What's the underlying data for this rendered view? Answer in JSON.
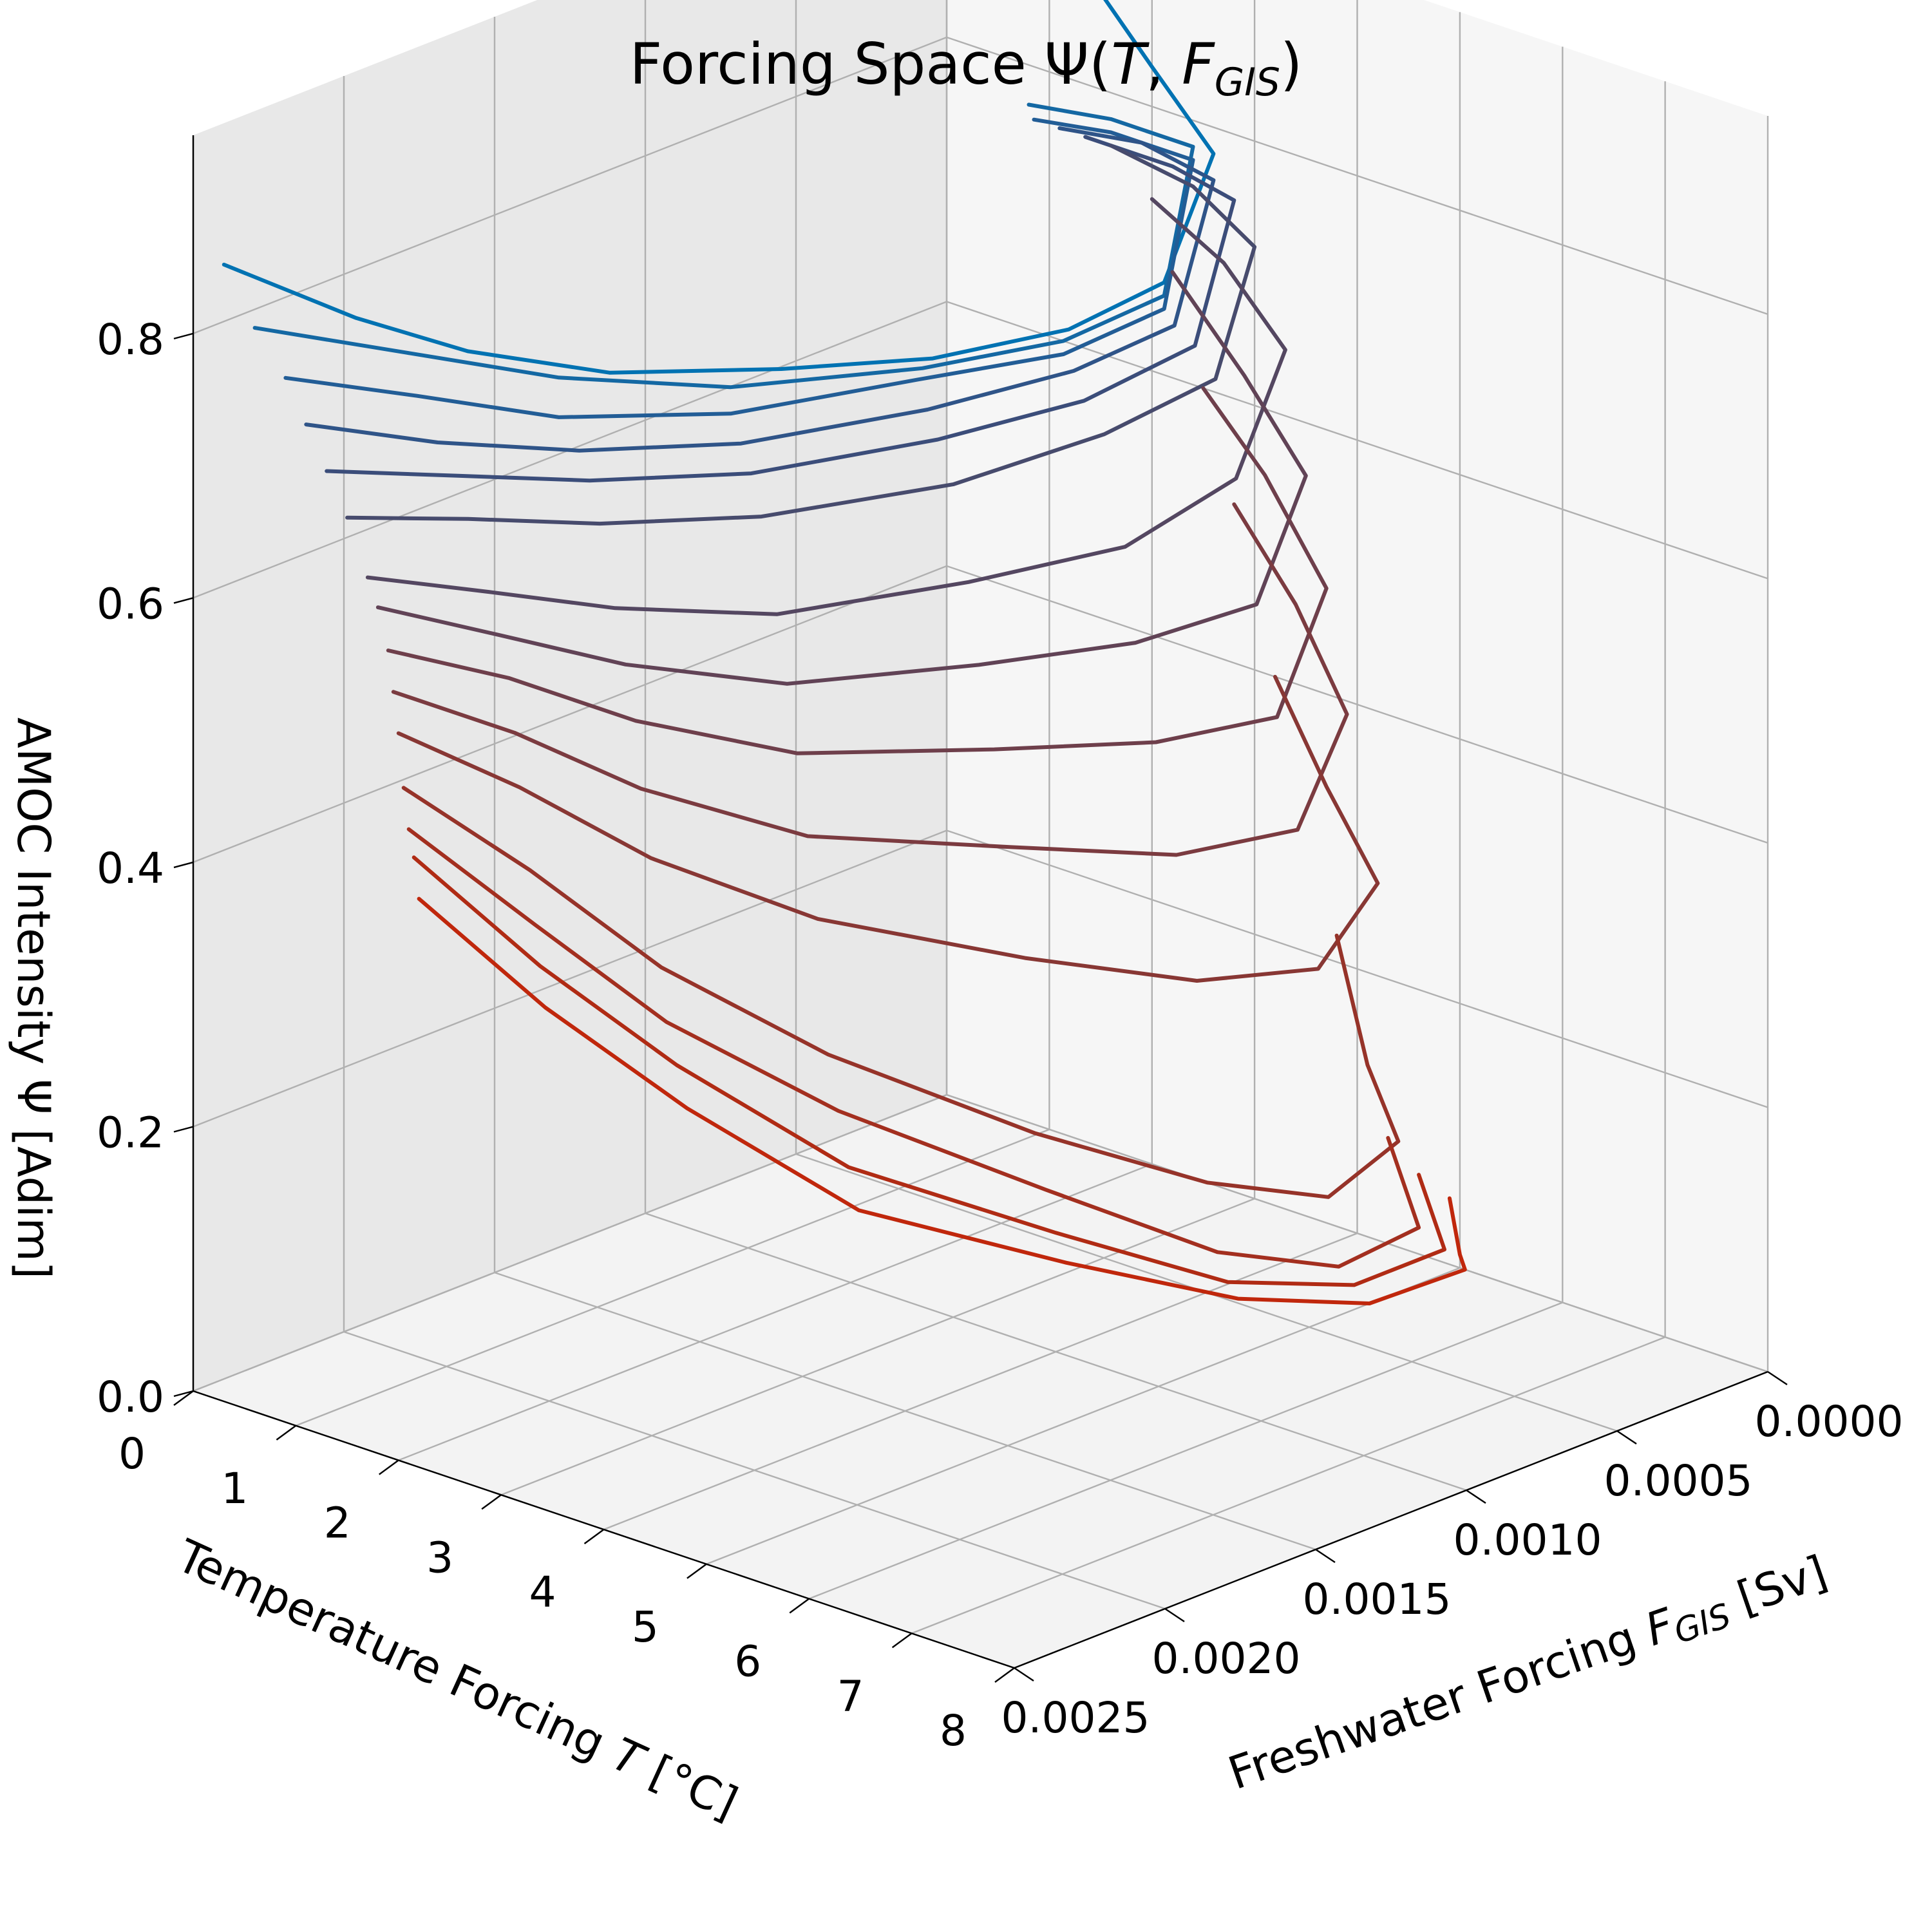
{
  "chart_data": {
    "type": "line",
    "projection": "3d",
    "title": "Forcing Space Ψ(T, F_GIS)",
    "title_parts": {
      "main": "Forcing Space Ψ(",
      "T": "T",
      "sep": ", ",
      "F": "F",
      "F_sub": "GIS",
      "close": ")"
    },
    "xlabel": "Temperature Forcing T   [°C]",
    "xlabel_parts": {
      "main": "Temperature Forcing ",
      "var": "T",
      "unit": "   [°C]"
    },
    "ylabel": "Freshwater Forcing F_GIS [Sv]",
    "ylabel_parts": {
      "main": "Freshwater Forcing ",
      "var": "F",
      "sub": "GIS",
      "unit": " [Sv]"
    },
    "zlabel": "AMOC Intensity Ψ   [Adim]",
    "xlim": [
      0,
      8
    ],
    "ylim": [
      0.0025,
      0
    ],
    "zlim": [
      0,
      0.95
    ],
    "xticks": [
      "0",
      "1",
      "2",
      "3",
      "4",
      "5",
      "6",
      "7",
      "8"
    ],
    "yticks": [
      "0.0000",
      "0.0005",
      "0.0010",
      "0.0015",
      "0.0020",
      "0.0025"
    ],
    "zticks": [
      "0.0",
      "0.2",
      "0.4",
      "0.6",
      "0.8"
    ],
    "grid": true,
    "colors": {
      "start": "#0072b2",
      "end": "#d03010",
      "pane_left": "#e8e8e8",
      "pane_right": "#f6f6f6",
      "pane_floor": "#f3f3f3"
    },
    "series": [
      {
        "F_end": 0.0025,
        "color": "#0072b2",
        "points": [
          [
            0.8,
            0,
            0.92
          ],
          [
            1.3,
            0,
            0.89
          ],
          [
            2,
            0,
            0.83
          ],
          [
            2.6,
            0,
            0.78
          ],
          [
            3,
            0.0003,
            0.72
          ],
          [
            2.95,
            0.0006,
            0.71
          ],
          [
            2.8,
            0.001,
            0.72
          ],
          [
            2.5,
            0.0014,
            0.74
          ],
          [
            2,
            0.0018,
            0.76
          ],
          [
            1.5,
            0.0021,
            0.79
          ],
          [
            1,
            0.0023,
            0.82
          ],
          [
            0.3,
            0.0025,
            0.86
          ]
        ]
      },
      {
        "F_end": 0.0025,
        "color": "#1468a3",
        "points": [
          [
            0.8,
            0,
            0.77
          ],
          [
            1.6,
            0,
            0.78
          ],
          [
            2.4,
            0,
            0.78
          ],
          [
            3,
            0.0003,
            0.71
          ],
          [
            2.9,
            0.0006,
            0.7
          ],
          [
            2.7,
            0.001,
            0.71
          ],
          [
            2.3,
            0.0015,
            0.73
          ],
          [
            1.8,
            0.0019,
            0.76
          ],
          [
            1.2,
            0.0022,
            0.79
          ],
          [
            0.6,
            0.0025,
            0.82
          ]
        ]
      },
      {
        "F_end": 0.0025,
        "color": "#225d96",
        "points": [
          [
            0.85,
            0,
            0.76
          ],
          [
            1.6,
            0,
            0.77
          ],
          [
            2.4,
            0,
            0.77
          ],
          [
            3,
            0.0003,
            0.7
          ],
          [
            2.9,
            0.0006,
            0.69
          ],
          [
            2.65,
            0.001,
            0.7
          ],
          [
            2.3,
            0.0015,
            0.71
          ],
          [
            1.8,
            0.0019,
            0.73
          ],
          [
            1.3,
            0.0022,
            0.76
          ],
          [
            0.9,
            0.0025,
            0.79
          ]
        ]
      },
      {
        "F_end": 0.0025,
        "color": "#2f5488",
        "points": [
          [
            1.1,
            0,
            0.76
          ],
          [
            1.9,
            0,
            0.77
          ],
          [
            2.6,
            0,
            0.76
          ],
          [
            3.1,
            0.0003,
            0.69
          ],
          [
            3,
            0.0006,
            0.68
          ],
          [
            2.75,
            0.001,
            0.68
          ],
          [
            2.4,
            0.0015,
            0.69
          ],
          [
            2,
            0.0019,
            0.71
          ],
          [
            1.5,
            0.0022,
            0.73
          ],
          [
            1.1,
            0.0025,
            0.76
          ]
        ]
      },
      {
        "F_end": 0.0025,
        "color": "#3b4d7a",
        "points": [
          [
            1.35,
            0,
            0.76
          ],
          [
            2.2,
            0,
            0.76
          ],
          [
            2.8,
            0,
            0.75
          ],
          [
            3.3,
            0.0003,
            0.68
          ],
          [
            3.1,
            0.0006,
            0.66
          ],
          [
            2.85,
            0.001,
            0.66
          ],
          [
            2.5,
            0.0015,
            0.67
          ],
          [
            2.1,
            0.0019,
            0.69
          ],
          [
            1.7,
            0.0022,
            0.71
          ],
          [
            1.3,
            0.0025,
            0.73
          ]
        ]
      },
      {
        "F_end": 0.0025,
        "color": "#474b6d",
        "points": [
          [
            1.6,
            0,
            0.76
          ],
          [
            2.4,
            0,
            0.75
          ],
          [
            3,
            0,
            0.72
          ],
          [
            3.5,
            0.0003,
            0.66
          ],
          [
            3.3,
            0.0006,
            0.64
          ],
          [
            3,
            0.001,
            0.63
          ],
          [
            2.6,
            0.0015,
            0.64
          ],
          [
            2.2,
            0.0019,
            0.66
          ],
          [
            1.8,
            0.0022,
            0.68
          ],
          [
            1.5,
            0.0025,
            0.7
          ]
        ]
      },
      {
        "F_end": 0.0025,
        "color": "#544761",
        "points": [
          [
            2,
            0,
            0.73
          ],
          [
            2.7,
            0,
            0.7
          ],
          [
            3.3,
            0,
            0.65
          ],
          [
            3.7,
            0.0003,
            0.59
          ],
          [
            3.5,
            0.0006,
            0.56
          ],
          [
            3.15,
            0.001,
            0.56
          ],
          [
            2.75,
            0.0015,
            0.57
          ],
          [
            2.35,
            0.0019,
            0.6
          ],
          [
            2,
            0.0022,
            0.63
          ],
          [
            1.7,
            0.0025,
            0.66
          ]
        ]
      },
      {
        "F_end": 0.0025,
        "color": "#614356",
        "points": [
          [
            2.2,
            0,
            0.68
          ],
          [
            2.9,
            0,
            0.62
          ],
          [
            3.5,
            0,
            0.56
          ],
          [
            3.9,
            0.0003,
            0.5
          ],
          [
            3.6,
            0.0006,
            0.49
          ],
          [
            3.25,
            0.001,
            0.5
          ],
          [
            2.85,
            0.0015,
            0.52
          ],
          [
            2.45,
            0.0019,
            0.56
          ],
          [
            2.1,
            0.0022,
            0.6
          ],
          [
            1.8,
            0.0025,
            0.64
          ]
        ]
      },
      {
        "F_end": 0.0025,
        "color": "#6e3f4b",
        "points": [
          [
            2.5,
            0,
            0.6
          ],
          [
            3.1,
            0,
            0.55
          ],
          [
            3.7,
            0,
            0.48
          ],
          [
            4.1,
            0.0003,
            0.42
          ],
          [
            3.8,
            0.0006,
            0.42
          ],
          [
            3.4,
            0.001,
            0.44
          ],
          [
            2.95,
            0.0015,
            0.47
          ],
          [
            2.55,
            0.0019,
            0.52
          ],
          [
            2.2,
            0.0022,
            0.57
          ],
          [
            1.9,
            0.0025,
            0.61
          ]
        ]
      },
      {
        "F_end": 0.0025,
        "color": "#7b3b40",
        "points": [
          [
            2.8,
            0,
            0.52
          ],
          [
            3.4,
            0,
            0.46
          ],
          [
            3.9,
            0,
            0.39
          ],
          [
            4.3,
            0.0003,
            0.34
          ],
          [
            4,
            0.0006,
            0.34
          ],
          [
            3.55,
            0.001,
            0.37
          ],
          [
            3.05,
            0.0015,
            0.41
          ],
          [
            2.6,
            0.0019,
            0.47
          ],
          [
            2.25,
            0.0022,
            0.53
          ],
          [
            1.95,
            0.0025,
            0.58
          ]
        ]
      },
      {
        "F_end": 0.0025,
        "color": "#883734",
        "points": [
          [
            3.2,
            0,
            0.4
          ],
          [
            3.7,
            0,
            0.33
          ],
          [
            4.2,
            0,
            0.27
          ],
          [
            4.5,
            0.0003,
            0.24
          ],
          [
            4.2,
            0.0006,
            0.25
          ],
          [
            3.7,
            0.001,
            0.29
          ],
          [
            3.15,
            0.0015,
            0.35
          ],
          [
            2.7,
            0.0019,
            0.42
          ],
          [
            2.3,
            0.0022,
            0.49
          ],
          [
            2,
            0.0025,
            0.55
          ]
        ]
      },
      {
        "F_end": 0.0025,
        "color": "#963329",
        "points": [
          [
            3.8,
            0,
            0.22
          ],
          [
            4.1,
            0,
            0.13
          ],
          [
            4.4,
            0,
            0.08
          ],
          [
            4.6,
            0.0003,
            0.07
          ],
          [
            4.3,
            0.0006,
            0.1
          ],
          [
            3.8,
            0.001,
            0.16
          ],
          [
            3.25,
            0.0015,
            0.25
          ],
          [
            2.8,
            0.0019,
            0.34
          ],
          [
            2.4,
            0.0022,
            0.43
          ],
          [
            2.05,
            0.0025,
            0.51
          ]
        ]
      },
      {
        "F_end": 0.0025,
        "color": "#a32f1f",
        "points": [
          [
            4.3,
            0,
            0.08
          ],
          [
            4.5,
            0,
            0.04
          ],
          [
            4.6,
            0,
            0.02
          ],
          [
            4.7,
            0.0003,
            0.02
          ],
          [
            4.4,
            0.0006,
            0.05
          ],
          [
            3.9,
            0.001,
            0.12
          ],
          [
            3.35,
            0.0015,
            0.21
          ],
          [
            2.85,
            0.0019,
            0.3
          ],
          [
            2.45,
            0.0022,
            0.39
          ],
          [
            2.1,
            0.0025,
            0.48
          ]
        ]
      },
      {
        "F_end": 0.0025,
        "color": "#b02b14",
        "points": [
          [
            4.6,
            0,
            0.06
          ],
          [
            4.8,
            0,
            0.02
          ],
          [
            4.85,
            0,
            0.01
          ],
          [
            4.85,
            0.0003,
            0.01
          ],
          [
            4.5,
            0.0006,
            0.03
          ],
          [
            4,
            0.001,
            0.09
          ],
          [
            3.45,
            0.0015,
            0.17
          ],
          [
            2.95,
            0.0019,
            0.27
          ],
          [
            2.5,
            0.0022,
            0.36
          ],
          [
            2.15,
            0.0025,
            0.46
          ]
        ]
      },
      {
        "F_end": 0.0025,
        "color": "#c0270c",
        "points": [
          [
            4.9,
            0,
            0.05
          ],
          [
            5,
            0,
            0.01
          ],
          [
            5.05,
            0,
            0.0
          ],
          [
            5,
            0.0003,
            0.0
          ],
          [
            4.6,
            0.0006,
            0.02
          ],
          [
            4.1,
            0.001,
            0.07
          ],
          [
            3.55,
            0.0015,
            0.14
          ],
          [
            3.05,
            0.0019,
            0.24
          ],
          [
            2.55,
            0.0022,
            0.33
          ],
          [
            2.2,
            0.0025,
            0.43
          ]
        ]
      }
    ]
  }
}
